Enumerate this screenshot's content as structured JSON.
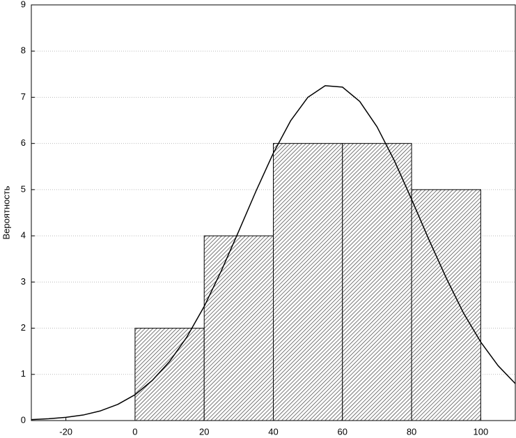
{
  "chart_data": {
    "type": "histogram",
    "ylabel": "Вероятность",
    "bins": [
      0,
      20,
      40,
      60,
      80,
      100
    ],
    "values": [
      2,
      4,
      6,
      6,
      5
    ],
    "color": "#ffffff",
    "curve": {
      "x": [
        -30,
        -25,
        -20,
        -15,
        -10,
        -5,
        0,
        5,
        10,
        15,
        20,
        25,
        30,
        35,
        40,
        45,
        50,
        55,
        60,
        65,
        70,
        75,
        80,
        85,
        90,
        95,
        100,
        105,
        110
      ],
      "values": [
        0.02,
        0.04,
        0.07,
        0.12,
        0.21,
        0.35,
        0.56,
        0.87,
        1.28,
        1.81,
        2.47,
        3.25,
        4.1,
        4.97,
        5.79,
        6.49,
        7.0,
        7.25,
        7.22,
        6.91,
        6.36,
        5.63,
        4.79,
        3.92,
        3.09,
        2.33,
        1.7,
        1.19,
        0.8
      ]
    },
    "xlim": [
      -30,
      110
    ],
    "xticks": [
      -20,
      0,
      20,
      40,
      60,
      80,
      100
    ],
    "ylim": [
      0,
      9
    ],
    "yticks": [
      0,
      1,
      2,
      3,
      4,
      5,
      6,
      7,
      8,
      9
    ],
    "grid": true
  }
}
